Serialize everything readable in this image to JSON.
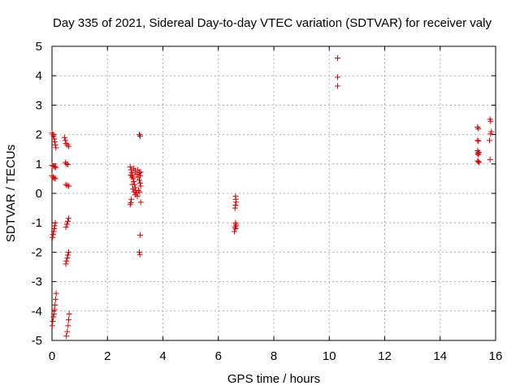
{
  "chart_data": {
    "type": "scatter",
    "title": "Day 335 of 2021, Sidereal Day-to-day VTEC variation (SDTVAR) for receiver valy",
    "xlabel": "GPS time / hours",
    "ylabel": "SDTVAR / TECUs",
    "xlim": [
      0,
      16
    ],
    "ylim": [
      -5,
      5
    ],
    "xticks": [
      0,
      2,
      4,
      6,
      8,
      10,
      12,
      14,
      16
    ],
    "yticks": [
      -5,
      -4,
      -3,
      -2,
      -1,
      0,
      1,
      2,
      3,
      4,
      5
    ],
    "grid": true,
    "marker": "+",
    "color": "#e00000",
    "series": [
      {
        "name": "SDTVAR",
        "points": [
          [
            0.0,
            2.05
          ],
          [
            0.03,
            2.0
          ],
          [
            0.06,
            1.95
          ],
          [
            0.08,
            1.85
          ],
          [
            0.1,
            1.75
          ],
          [
            0.12,
            1.65
          ],
          [
            0.14,
            1.55
          ],
          [
            0.0,
            0.95
          ],
          [
            0.05,
            0.93
          ],
          [
            0.1,
            0.9
          ],
          [
            0.14,
            0.88
          ],
          [
            0.0,
            0.6
          ],
          [
            0.04,
            0.55
          ],
          [
            0.08,
            0.52
          ],
          [
            0.12,
            0.5
          ],
          [
            0.12,
            -1.0
          ],
          [
            0.1,
            -1.1
          ],
          [
            0.08,
            -1.2
          ],
          [
            0.06,
            -1.3
          ],
          [
            0.04,
            -1.4
          ],
          [
            0.02,
            -1.5
          ],
          [
            0.15,
            -3.4
          ],
          [
            0.13,
            -3.6
          ],
          [
            0.11,
            -3.8
          ],
          [
            0.09,
            -3.95
          ],
          [
            0.07,
            -4.1
          ],
          [
            0.05,
            -4.2
          ],
          [
            0.03,
            -4.35
          ],
          [
            0.01,
            -4.5
          ],
          [
            0.45,
            1.9
          ],
          [
            0.48,
            1.8
          ],
          [
            0.5,
            1.7
          ],
          [
            0.55,
            1.65
          ],
          [
            0.6,
            1.6
          ],
          [
            0.48,
            1.05
          ],
          [
            0.52,
            1.0
          ],
          [
            0.57,
            0.98
          ],
          [
            0.5,
            0.3
          ],
          [
            0.55,
            0.27
          ],
          [
            0.6,
            0.25
          ],
          [
            0.6,
            -0.85
          ],
          [
            0.57,
            -0.95
          ],
          [
            0.54,
            -1.05
          ],
          [
            0.5,
            -1.15
          ],
          [
            0.6,
            -2.0
          ],
          [
            0.57,
            -2.1
          ],
          [
            0.55,
            -2.2
          ],
          [
            0.52,
            -2.3
          ],
          [
            0.5,
            -2.4
          ],
          [
            0.62,
            -4.1
          ],
          [
            0.6,
            -4.3
          ],
          [
            0.58,
            -4.5
          ],
          [
            0.55,
            -4.7
          ],
          [
            0.52,
            -4.85
          ],
          [
            2.82,
            0.9
          ],
          [
            2.85,
            0.8
          ],
          [
            2.88,
            0.7
          ],
          [
            2.9,
            0.6
          ],
          [
            2.93,
            0.5
          ],
          [
            2.95,
            0.4
          ],
          [
            2.98,
            0.3
          ],
          [
            3.0,
            0.2
          ],
          [
            3.02,
            0.1
          ],
          [
            3.05,
            0.0
          ],
          [
            3.08,
            -0.1
          ],
          [
            2.86,
            -0.2
          ],
          [
            2.84,
            -0.32
          ],
          [
            2.82,
            -0.38
          ],
          [
            2.95,
            0.85
          ],
          [
            3.0,
            0.75
          ],
          [
            3.05,
            0.65
          ],
          [
            3.1,
            0.55
          ],
          [
            3.15,
            0.45
          ],
          [
            3.18,
            0.35
          ],
          [
            3.2,
            0.25
          ],
          [
            3.1,
            0.8
          ],
          [
            3.15,
            0.7
          ],
          [
            2.9,
            0.3
          ],
          [
            2.92,
            0.15
          ],
          [
            2.96,
            0.05
          ],
          [
            3.0,
            -0.05
          ],
          [
            3.12,
            0.1
          ],
          [
            3.16,
            0.05
          ],
          [
            3.2,
            0.72
          ],
          [
            3.18,
            0.6
          ],
          [
            2.88,
            0.55
          ],
          [
            2.84,
            0.62
          ],
          [
            3.15,
            2.0
          ],
          [
            3.18,
            1.95
          ],
          [
            3.2,
            -0.3
          ],
          [
            3.18,
            -1.42
          ],
          [
            3.15,
            -2.0
          ],
          [
            3.17,
            -2.08
          ],
          [
            6.62,
            -0.1
          ],
          [
            6.63,
            -0.2
          ],
          [
            6.64,
            -0.3
          ],
          [
            6.62,
            -0.4
          ],
          [
            6.6,
            -0.5
          ],
          [
            6.62,
            -1.0
          ],
          [
            6.63,
            -1.05
          ],
          [
            6.64,
            -1.1
          ],
          [
            6.6,
            -1.15
          ],
          [
            6.62,
            -1.2
          ],
          [
            6.58,
            -1.3
          ],
          [
            10.3,
            4.6
          ],
          [
            10.3,
            3.95
          ],
          [
            10.3,
            3.65
          ],
          [
            15.35,
            2.25
          ],
          [
            15.38,
            2.2
          ],
          [
            15.35,
            1.8
          ],
          [
            15.38,
            1.78
          ],
          [
            15.35,
            1.45
          ],
          [
            15.38,
            1.4
          ],
          [
            15.4,
            1.38
          ],
          [
            15.35,
            1.35
          ],
          [
            15.38,
            1.32
          ],
          [
            15.35,
            1.1
          ],
          [
            15.38,
            1.08
          ],
          [
            15.4,
            1.05
          ],
          [
            15.8,
            2.52
          ],
          [
            15.82,
            2.45
          ],
          [
            15.85,
            2.1
          ],
          [
            15.82,
            2.02
          ],
          [
            15.78,
            1.8
          ],
          [
            15.8,
            1.15
          ]
        ]
      }
    ]
  }
}
